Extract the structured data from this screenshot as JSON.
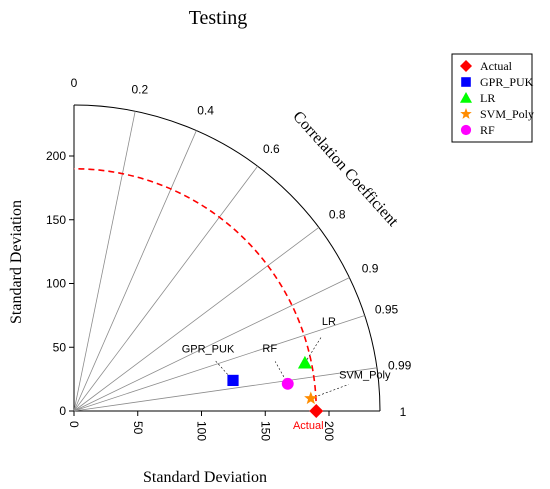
{
  "chart_data": {
    "type": "scatter",
    "title": "Testing",
    "xlabel": "Standard Deviation",
    "ylabel": "Standard Deviation",
    "correlation_label": "Correlation Coefficient",
    "sd_range": [
      0,
      240
    ],
    "sd_ticks": [
      0,
      50,
      100,
      150,
      200
    ],
    "correlation_ticks": [
      0,
      0.2,
      0.4,
      0.6,
      0.8,
      0.9,
      0.95,
      0.99,
      1
    ],
    "reference_sd": 190,
    "reference_arc_color": "#ff0000",
    "legend_position": "top-right",
    "points": [
      {
        "name": "Actual",
        "sd": 190,
        "correlation": 1.0,
        "marker": "diamond",
        "color": "#ff0000",
        "label": "Actual",
        "label_color": "#ff0000"
      },
      {
        "name": "GPR_PUK",
        "sd": 127,
        "correlation": 0.982,
        "marker": "square",
        "color": "#0000ff",
        "label": "GPR_PUK",
        "label_color": "#000000"
      },
      {
        "name": "LR",
        "sd": 185,
        "correlation": 0.979,
        "marker": "triangle",
        "color": "#00ff00",
        "label": "LR",
        "label_color": "#000000"
      },
      {
        "name": "SVM_Poly",
        "sd": 186,
        "correlation": 0.9986,
        "marker": "star",
        "color": "#ff8c00",
        "label": "SVM_Poly",
        "label_color": "#000000"
      },
      {
        "name": "RF",
        "sd": 169,
        "correlation": 0.992,
        "marker": "circle",
        "color": "#ff00ff",
        "label": "RF",
        "label_color": "#000000"
      }
    ]
  }
}
